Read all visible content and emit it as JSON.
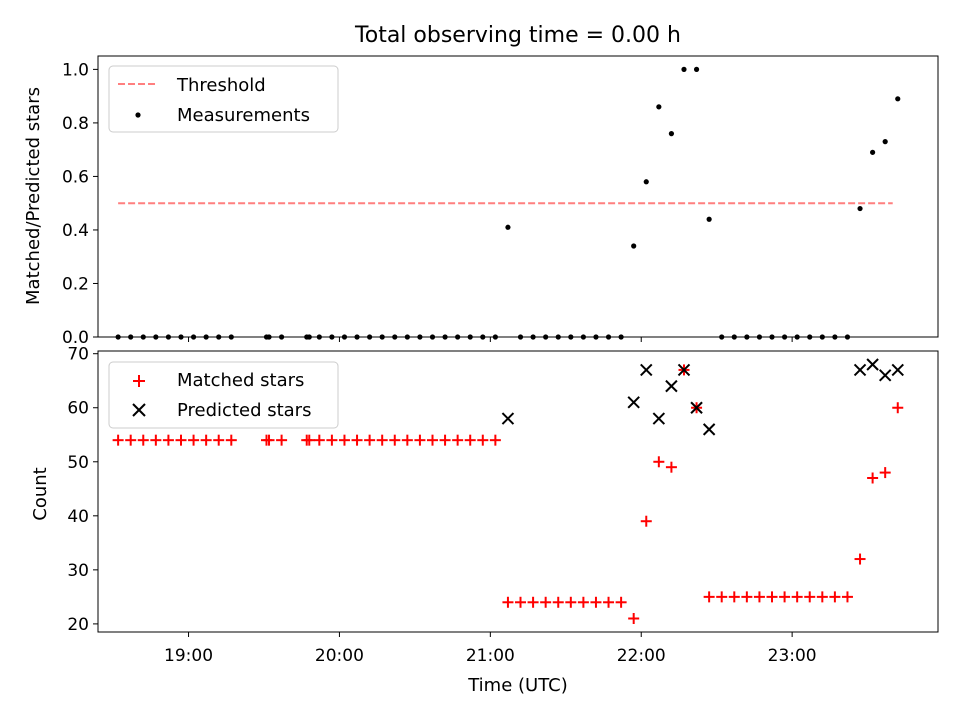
{
  "figure": {
    "title": "Total observing time = 0.00 h",
    "xlabel": "Time (UTC)",
    "xticks": [
      "19:00",
      "20:00",
      "21:00",
      "22:00",
      "23:00"
    ]
  },
  "colors": {
    "threshold": "#ff7f7f",
    "measurements": "#000000",
    "matched": "#ff0000",
    "predicted": "#000000"
  },
  "chart_data": [
    {
      "type": "scatter",
      "panel": "top",
      "ylabel": "Matched/Predicted stars",
      "xlim": [
        "18:24",
        "23:58"
      ],
      "ylim": [
        0,
        1.05
      ],
      "yticks": [
        "0.0",
        "0.2",
        "0.4",
        "0.6",
        "0.8",
        "1.0"
      ],
      "grid": false,
      "legend_position": "top-left",
      "threshold": {
        "name": "Threshold",
        "x": [
          "18:32",
          "23:40"
        ],
        "y": 0.5,
        "style": "dashed"
      },
      "series": [
        {
          "name": "Measurements",
          "points": [
            [
              "18:32",
              0
            ],
            [
              "18:37",
              0
            ],
            [
              "18:42",
              0
            ],
            [
              "18:47",
              0
            ],
            [
              "18:52",
              0
            ],
            [
              "18:57",
              0
            ],
            [
              "19:02",
              0
            ],
            [
              "19:07",
              0
            ],
            [
              "19:12",
              0
            ],
            [
              "19:17",
              0
            ],
            [
              "19:31",
              0
            ],
            [
              "19:32",
              0
            ],
            [
              "19:37",
              0
            ],
            [
              "19:47",
              0
            ],
            [
              "19:48",
              0
            ],
            [
              "19:52",
              0
            ],
            [
              "19:57",
              0
            ],
            [
              "20:02",
              0
            ],
            [
              "20:07",
              0
            ],
            [
              "20:12",
              0
            ],
            [
              "20:17",
              0
            ],
            [
              "20:22",
              0
            ],
            [
              "20:27",
              0
            ],
            [
              "20:32",
              0
            ],
            [
              "20:37",
              0
            ],
            [
              "20:42",
              0
            ],
            [
              "20:47",
              0
            ],
            [
              "20:52",
              0
            ],
            [
              "20:57",
              0
            ],
            [
              "21:02",
              0
            ],
            [
              "21:07",
              0.41
            ],
            [
              "21:12",
              0
            ],
            [
              "21:17",
              0
            ],
            [
              "21:22",
              0
            ],
            [
              "21:27",
              0
            ],
            [
              "21:32",
              0
            ],
            [
              "21:37",
              0
            ],
            [
              "21:42",
              0
            ],
            [
              "21:47",
              0
            ],
            [
              "21:52",
              0
            ],
            [
              "21:57",
              0.34
            ],
            [
              "22:02",
              0.58
            ],
            [
              "22:07",
              0.86
            ],
            [
              "22:12",
              0.76
            ],
            [
              "22:17",
              1.0
            ],
            [
              "22:22",
              1.0
            ],
            [
              "22:27",
              0.44
            ],
            [
              "22:32",
              0
            ],
            [
              "22:37",
              0
            ],
            [
              "22:42",
              0
            ],
            [
              "22:47",
              0
            ],
            [
              "22:52",
              0
            ],
            [
              "22:57",
              0
            ],
            [
              "23:02",
              0
            ],
            [
              "23:07",
              0
            ],
            [
              "23:12",
              0
            ],
            [
              "23:17",
              0
            ],
            [
              "23:22",
              0
            ],
            [
              "23:27",
              0.48
            ],
            [
              "23:32",
              0.69
            ],
            [
              "23:37",
              0.73
            ],
            [
              "23:42",
              0.89
            ]
          ]
        }
      ]
    },
    {
      "type": "scatter",
      "panel": "bottom",
      "ylabel": "Count",
      "xlim": [
        "18:24",
        "23:58"
      ],
      "ylim": [
        18.5,
        70.5
      ],
      "yticks": [
        "20",
        "30",
        "40",
        "50",
        "60",
        "70"
      ],
      "grid": false,
      "legend_position": "top-left",
      "series": [
        {
          "name": "Matched stars",
          "marker": "plus",
          "points": [
            [
              "18:32",
              54
            ],
            [
              "18:37",
              54
            ],
            [
              "18:42",
              54
            ],
            [
              "18:47",
              54
            ],
            [
              "18:52",
              54
            ],
            [
              "18:57",
              54
            ],
            [
              "19:02",
              54
            ],
            [
              "19:07",
              54
            ],
            [
              "19:12",
              54
            ],
            [
              "19:17",
              54
            ],
            [
              "19:31",
              54
            ],
            [
              "19:32",
              54
            ],
            [
              "19:37",
              54
            ],
            [
              "19:47",
              54
            ],
            [
              "19:48",
              54
            ],
            [
              "19:52",
              54
            ],
            [
              "19:57",
              54
            ],
            [
              "20:02",
              54
            ],
            [
              "20:07",
              54
            ],
            [
              "20:12",
              54
            ],
            [
              "20:17",
              54
            ],
            [
              "20:22",
              54
            ],
            [
              "20:27",
              54
            ],
            [
              "20:32",
              54
            ],
            [
              "20:37",
              54
            ],
            [
              "20:42",
              54
            ],
            [
              "20:47",
              54
            ],
            [
              "20:52",
              54
            ],
            [
              "20:57",
              54
            ],
            [
              "21:02",
              54
            ],
            [
              "21:07",
              24
            ],
            [
              "21:12",
              24
            ],
            [
              "21:17",
              24
            ],
            [
              "21:22",
              24
            ],
            [
              "21:27",
              24
            ],
            [
              "21:32",
              24
            ],
            [
              "21:37",
              24
            ],
            [
              "21:42",
              24
            ],
            [
              "21:47",
              24
            ],
            [
              "21:52",
              24
            ],
            [
              "21:57",
              21
            ],
            [
              "22:02",
              39
            ],
            [
              "22:07",
              50
            ],
            [
              "22:12",
              49
            ],
            [
              "22:17",
              67
            ],
            [
              "22:22",
              60
            ],
            [
              "22:27",
              25
            ],
            [
              "22:32",
              25
            ],
            [
              "22:37",
              25
            ],
            [
              "22:42",
              25
            ],
            [
              "22:47",
              25
            ],
            [
              "22:52",
              25
            ],
            [
              "22:57",
              25
            ],
            [
              "23:02",
              25
            ],
            [
              "23:07",
              25
            ],
            [
              "23:12",
              25
            ],
            [
              "23:17",
              25
            ],
            [
              "23:22",
              25
            ],
            [
              "23:27",
              32
            ],
            [
              "23:32",
              47
            ],
            [
              "23:37",
              48
            ],
            [
              "23:42",
              60
            ]
          ]
        },
        {
          "name": "Predicted stars",
          "marker": "x",
          "points": [
            [
              "21:07",
              58
            ],
            [
              "21:57",
              61
            ],
            [
              "22:02",
              67
            ],
            [
              "22:07",
              58
            ],
            [
              "22:12",
              64
            ],
            [
              "22:17",
              67
            ],
            [
              "22:22",
              60
            ],
            [
              "22:27",
              56
            ],
            [
              "23:27",
              67
            ],
            [
              "23:32",
              68
            ],
            [
              "23:37",
              66
            ],
            [
              "23:42",
              67
            ]
          ]
        }
      ]
    }
  ]
}
